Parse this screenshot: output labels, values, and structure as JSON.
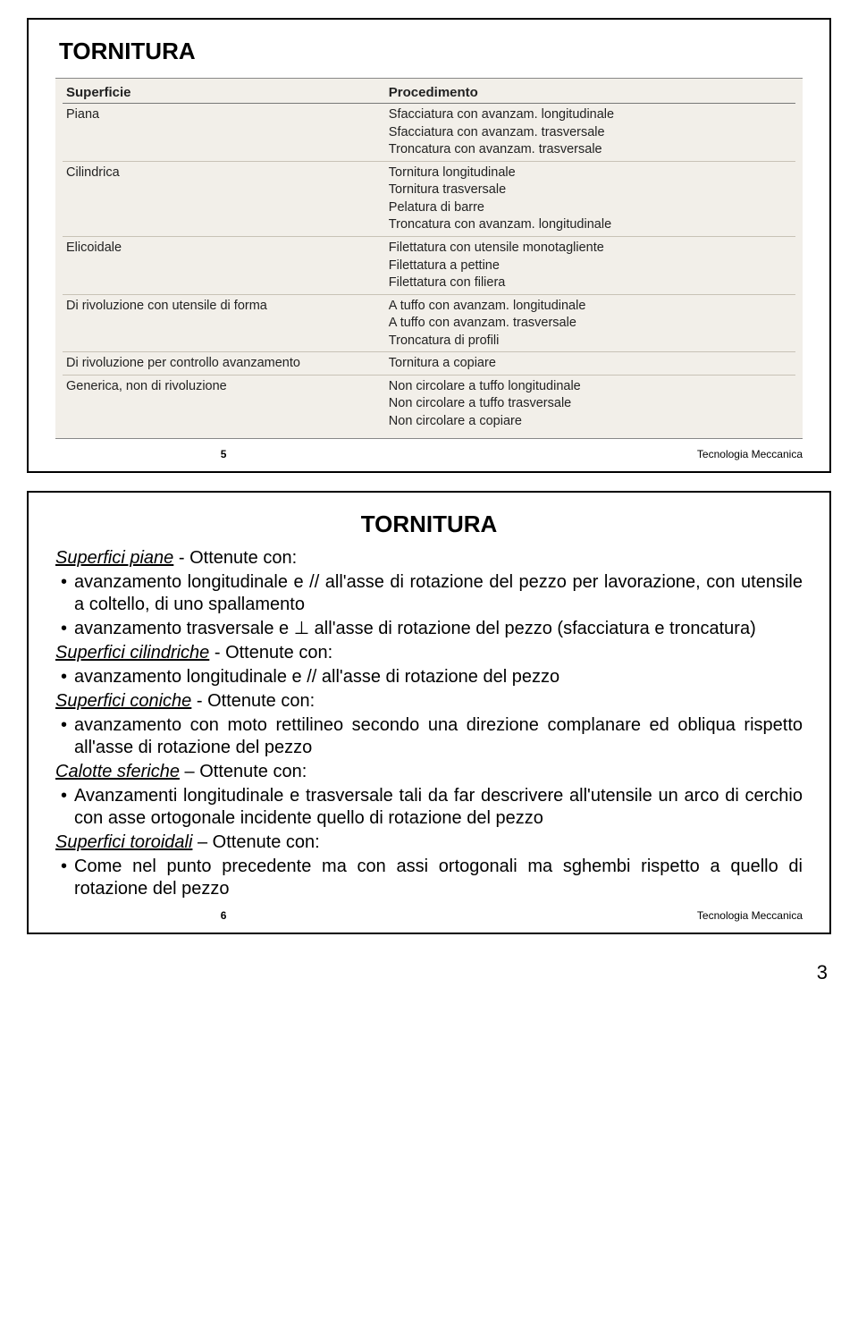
{
  "slide1": {
    "title": "TORNITURA",
    "table": {
      "type": "table",
      "background_color": "#f2efe9",
      "border_color": "#888888",
      "row_divider_color": "#c8c2b6",
      "text_color": "#222222",
      "header_fontsize": 15,
      "cell_fontsize": 14.5,
      "col_widths_pct": [
        44,
        56
      ],
      "columns": [
        "Superficie",
        "Procedimento"
      ],
      "rows": [
        [
          "Piana",
          "Sfacciatura con avanzam. longitudinale\nSfacciatura con avanzam. trasversale\nTroncatura con avanzam. trasversale"
        ],
        [
          "Cilindrica",
          "Tornitura longitudinale\nTornitura trasversale\nPelatura di barre\nTroncatura con avanzam. longitudinale"
        ],
        [
          "Elicoidale",
          "Filettatura con utensile monotagliente\nFilettatura a pettine\nFilettatura con filiera"
        ],
        [
          "Di rivoluzione con utensile di forma",
          "A tuffo con avanzam. longitudinale\nA tuffo con avanzam. trasversale\nTroncatura di profili"
        ],
        [
          "Di rivoluzione per controllo avanzamento",
          "Tornitura a copiare"
        ],
        [
          "Generica, non di rivoluzione",
          "Non circolare a tuffo longitudinale\nNon circolare a tuffo trasversale\nNon circolare a copiare"
        ]
      ]
    },
    "footer": {
      "page": "5",
      "source": "Tecnologia Meccanica"
    }
  },
  "slide2": {
    "title": "TORNITURA",
    "body_fontsize": 20,
    "sections": [
      {
        "heading": "Superfici piane",
        "heading_suffix": " - Ottenute con:",
        "bullets": [
          "avanzamento longitudinale e // all'asse di rotazione del pezzo per lavorazione, con utensile a coltello, di uno spallamento",
          "avanzamento trasversale e ⊥ all'asse di rotazione del pezzo (sfacciatura e troncatura)"
        ]
      },
      {
        "heading": "Superfici cilindriche",
        "heading_suffix": " - Ottenute con:",
        "bullets": [
          "avanzamento longitudinale e // all'asse di rotazione del pezzo"
        ]
      },
      {
        "heading": "Superfici coniche",
        "heading_suffix": " - Ottenute con:",
        "bullets": [
          "avanzamento con moto rettilineo secondo una direzione complanare ed obliqua rispetto all'asse di rotazione del pezzo"
        ]
      },
      {
        "heading": "Calotte sferiche",
        "heading_suffix": " – Ottenute con:",
        "bullets": [
          "Avanzamenti longitudinale e trasversale tali da far descrivere all'utensile un arco di cerchio con asse ortogonale incidente quello di rotazione del pezzo"
        ]
      },
      {
        "heading": "Superfici toroidali",
        "heading_suffix": " – Ottenute con:",
        "bullets": [
          "Come nel punto precedente ma con assi ortogonali ma sghembi rispetto a quello di rotazione del pezzo"
        ]
      }
    ],
    "footer": {
      "page": "6",
      "source": "Tecnologia Meccanica"
    }
  },
  "page_corner": "3",
  "colors": {
    "page_bg": "#ffffff",
    "border": "#000000",
    "text": "#000000"
  }
}
